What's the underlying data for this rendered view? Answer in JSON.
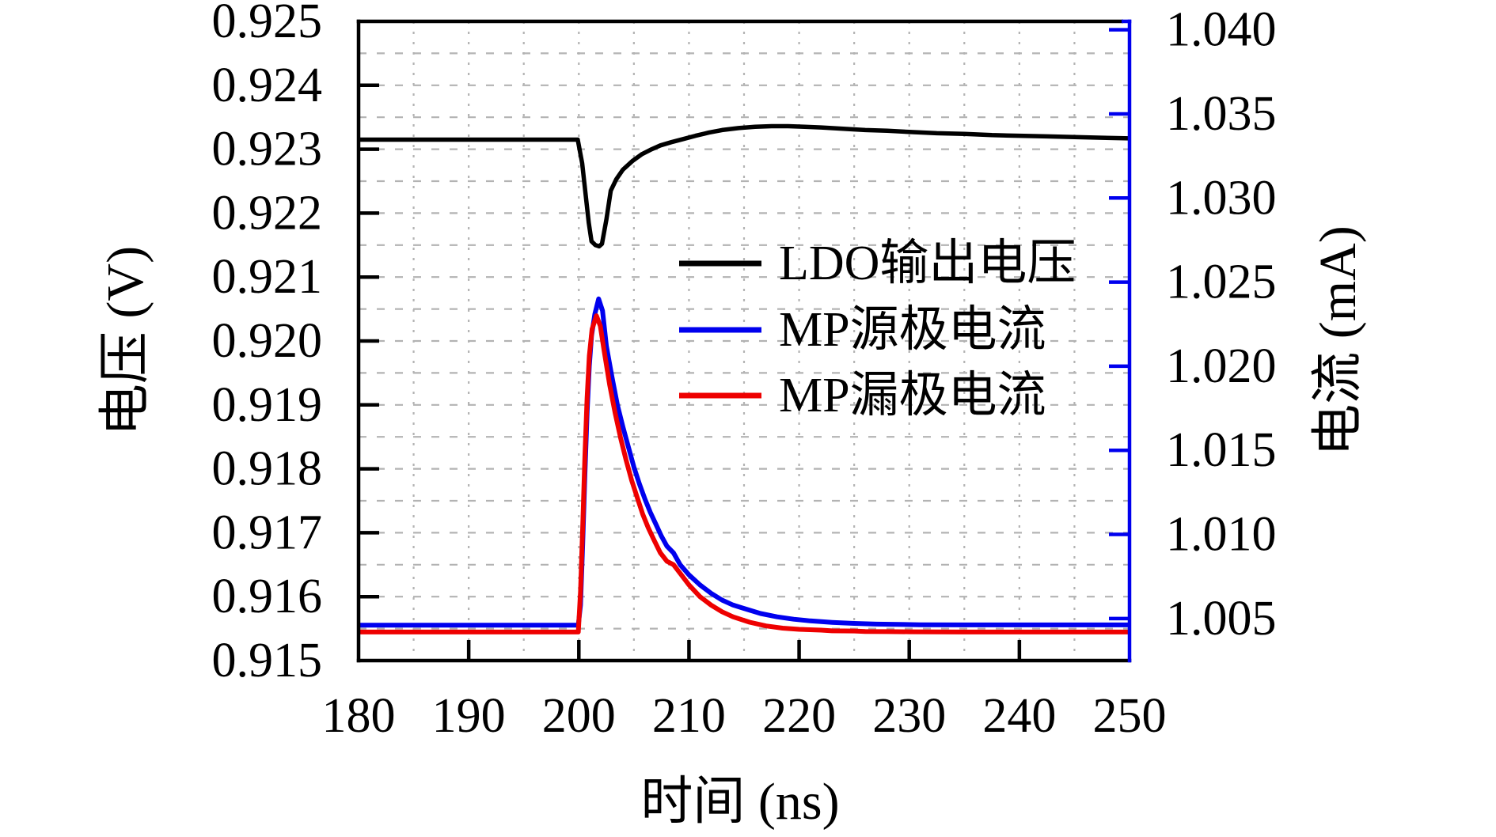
{
  "figure": {
    "background": "#ffffff",
    "grid_color": "#b3b3b3",
    "x_axis": {
      "title": "时间 (ns)",
      "ticks": [
        180,
        190,
        200,
        210,
        220,
        230,
        240,
        250
      ],
      "tick_labels": [
        "180",
        "190",
        "200",
        "210",
        "220",
        "230",
        "240",
        "250"
      ],
      "minor_step": 5,
      "color": "#000000"
    },
    "left_axis": {
      "title": "电压 (V)",
      "ticks": [
        0.915,
        0.916,
        0.917,
        0.918,
        0.919,
        0.92,
        0.921,
        0.922,
        0.923,
        0.924,
        0.925
      ],
      "tick_labels": [
        "0.915",
        "0.916",
        "0.917",
        "0.918",
        "0.919",
        "0.920",
        "0.921",
        "0.922",
        "0.923",
        "0.924",
        "0.925"
      ],
      "minor_step": 0.0005,
      "color": "#000000"
    },
    "right_axis": {
      "title": "电流 (mA)",
      "ticks": [
        1.005,
        1.01,
        1.015,
        1.02,
        1.025,
        1.03,
        1.035,
        1.04
      ],
      "tick_labels": [
        "1.005",
        "1.010",
        "1.015",
        "1.020",
        "1.025",
        "1.030",
        "1.035",
        "1.040"
      ],
      "minor_step": 0.0025,
      "color": "#0000ee"
    }
  },
  "legend": {
    "entries": [
      {
        "label": "LDO输出电压",
        "color": "#000000"
      },
      {
        "label": "MP源极电流",
        "color": "#0000ee"
      },
      {
        "label": "MP漏极电流",
        "color": "#ee0000"
      }
    ]
  },
  "chart_data": {
    "type": "line",
    "title": "",
    "xlabel": "时间 (ns)",
    "ylabel_left": "电压 (V)",
    "ylabel_right": "电流 (mA)",
    "x_range": [
      180,
      250
    ],
    "left_ylim": [
      0.915,
      0.925
    ],
    "right_ylim": [
      1.0025,
      1.0405
    ],
    "grid": true,
    "legend_position": "center-right",
    "series": [
      {
        "name": "LDO输出电压",
        "axis": "left",
        "unit": "V",
        "color": "#000000",
        "width": 5.5,
        "points": [
          [
            180,
            0.92315
          ],
          [
            185,
            0.92315
          ],
          [
            190,
            0.92315
          ],
          [
            195,
            0.92315
          ],
          [
            199.9,
            0.92315
          ],
          [
            200.3,
            0.92278
          ],
          [
            200.6,
            0.92232
          ],
          [
            200.9,
            0.92185
          ],
          [
            201.15,
            0.92156
          ],
          [
            201.5,
            0.9215
          ],
          [
            201.85,
            0.92148
          ],
          [
            202.1,
            0.92152
          ],
          [
            202.5,
            0.9219
          ],
          [
            202.9,
            0.92235
          ],
          [
            203.4,
            0.92253
          ],
          [
            204.0,
            0.92268
          ],
          [
            204.9,
            0.92282
          ],
          [
            205.7,
            0.92292
          ],
          [
            206.5,
            0.92299
          ],
          [
            207.4,
            0.92306
          ],
          [
            208.4,
            0.92311
          ],
          [
            209.5,
            0.92316
          ],
          [
            210.6,
            0.92321
          ],
          [
            211.8,
            0.92326
          ],
          [
            213,
            0.9233
          ],
          [
            214.5,
            0.92333
          ],
          [
            216,
            0.92335
          ],
          [
            217.5,
            0.92336
          ],
          [
            219,
            0.92336
          ],
          [
            220.5,
            0.92335
          ],
          [
            222,
            0.92334
          ],
          [
            224,
            0.92332
          ],
          [
            226,
            0.9233
          ],
          [
            228,
            0.92329
          ],
          [
            230,
            0.92327
          ],
          [
            232.5,
            0.92325
          ],
          [
            235,
            0.92324
          ],
          [
            237.5,
            0.92322
          ],
          [
            240,
            0.92321
          ],
          [
            242.5,
            0.9232
          ],
          [
            245,
            0.92319
          ],
          [
            247.5,
            0.92318
          ],
          [
            250,
            0.92317
          ]
        ]
      },
      {
        "name": "MP源极电流",
        "axis": "right",
        "unit": "mA",
        "color": "#0000ee",
        "width": 6,
        "points": [
          [
            180,
            1.0046
          ],
          [
            185,
            1.0046
          ],
          [
            190,
            1.0046
          ],
          [
            195,
            1.0046
          ],
          [
            199.95,
            1.0046
          ],
          [
            200.15,
            1.0058
          ],
          [
            200.35,
            1.0095
          ],
          [
            200.55,
            1.0135
          ],
          [
            200.75,
            1.0172
          ],
          [
            200.95,
            1.02
          ],
          [
            201.15,
            1.0218
          ],
          [
            201.45,
            1.0231
          ],
          [
            201.8,
            1.024
          ],
          [
            202.15,
            1.0233
          ],
          [
            202.5,
            1.0212
          ],
          [
            203,
            1.0194
          ],
          [
            203.5,
            1.0177
          ],
          [
            204,
            1.0164
          ],
          [
            204.5,
            1.0152
          ],
          [
            205,
            1.014
          ],
          [
            205.5,
            1.013
          ],
          [
            206,
            1.0121
          ],
          [
            206.5,
            1.0113
          ],
          [
            207,
            1.0106
          ],
          [
            207.5,
            1.0099
          ],
          [
            208,
            1.0093
          ],
          [
            208.6,
            1.0089
          ],
          [
            209.2,
            1.0082
          ],
          [
            210,
            1.0076
          ],
          [
            211,
            1.007
          ],
          [
            212,
            1.0065
          ],
          [
            213,
            1.0061
          ],
          [
            214,
            1.0058
          ],
          [
            215,
            1.0056
          ],
          [
            216.5,
            1.0053
          ],
          [
            218,
            1.0051
          ],
          [
            219.5,
            1.00496
          ],
          [
            221,
            1.00486
          ],
          [
            223,
            1.00477
          ],
          [
            225,
            1.00471
          ],
          [
            227,
            1.00467
          ],
          [
            229,
            1.00465
          ],
          [
            231,
            1.00463
          ],
          [
            235,
            1.00462
          ],
          [
            240,
            1.00462
          ],
          [
            245,
            1.00462
          ],
          [
            250,
            1.00462
          ]
        ]
      },
      {
        "name": "MP漏极电流",
        "axis": "right",
        "unit": "mA",
        "color": "#ee0000",
        "width": 6,
        "points": [
          [
            180,
            1.0042
          ],
          [
            185,
            1.0042
          ],
          [
            190,
            1.0042
          ],
          [
            195,
            1.0042
          ],
          [
            199.95,
            1.0042
          ],
          [
            200.15,
            1.0066
          ],
          [
            200.35,
            1.0105
          ],
          [
            200.55,
            1.0146
          ],
          [
            200.75,
            1.0181
          ],
          [
            200.95,
            1.0206
          ],
          [
            201.2,
            1.0222
          ],
          [
            201.6,
            1.023
          ],
          [
            201.95,
            1.0224
          ],
          [
            202.3,
            1.0209
          ],
          [
            202.8,
            1.0189
          ],
          [
            203.3,
            1.0172
          ],
          [
            203.8,
            1.0157
          ],
          [
            204.3,
            1.0144
          ],
          [
            204.8,
            1.0132
          ],
          [
            205.3,
            1.0122
          ],
          [
            205.8,
            1.0112
          ],
          [
            206.3,
            1.0104
          ],
          [
            206.8,
            1.0097
          ],
          [
            207.4,
            1.0089
          ],
          [
            208,
            1.0084
          ],
          [
            208.6,
            1.0082
          ],
          [
            209.3,
            1.0076
          ],
          [
            210,
            1.007
          ],
          [
            211,
            1.0063
          ],
          [
            212,
            1.0058
          ],
          [
            213,
            1.0054
          ],
          [
            214,
            1.0051
          ],
          [
            215.5,
            1.00478
          ],
          [
            217,
            1.00456
          ],
          [
            218.5,
            1.00443
          ],
          [
            220,
            1.00436
          ],
          [
            222,
            1.00431
          ],
          [
            223,
            1.00427
          ],
          [
            225,
            1.00426
          ],
          [
            226,
            1.00423
          ],
          [
            228,
            1.00422
          ],
          [
            230,
            1.00421
          ],
          [
            235,
            1.0042
          ],
          [
            240,
            1.0042
          ],
          [
            245,
            1.0042
          ],
          [
            250,
            1.0042
          ]
        ]
      }
    ]
  }
}
